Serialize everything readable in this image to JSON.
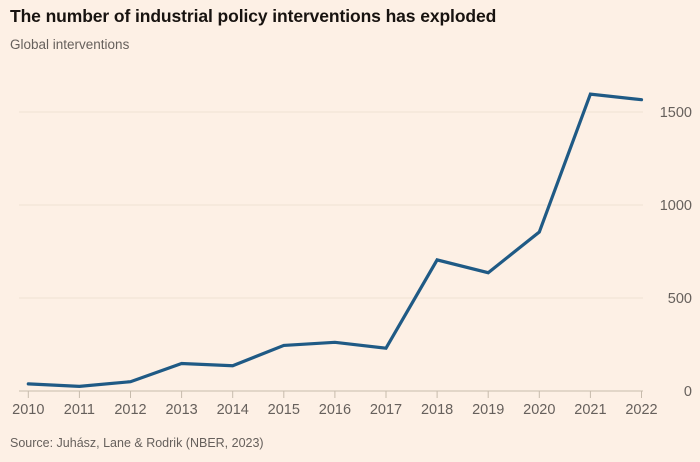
{
  "header": {
    "title": "The number of industrial policy interventions has exploded",
    "subtitle": "Global interventions"
  },
  "footer": {
    "source": "Source: Juhász, Lane & Rodrik (NBER, 2023)"
  },
  "chart_data": {
    "type": "line",
    "title": "The number of industrial policy interventions has exploded",
    "subtitle": "Global interventions",
    "series_name": "Global interventions",
    "x": [
      2010,
      2011,
      2012,
      2013,
      2014,
      2015,
      2016,
      2017,
      2018,
      2019,
      2020,
      2021,
      2022
    ],
    "values": [
      38,
      25,
      50,
      148,
      136,
      245,
      262,
      230,
      705,
      636,
      855,
      1596,
      1566
    ],
    "xlabel": "",
    "ylabel": "",
    "ylim": [
      0,
      1650
    ],
    "yticks": [
      0,
      500,
      1000,
      1500
    ],
    "y_axis_side": "right",
    "grid": true,
    "legend": "none",
    "colors": {
      "line": "#1f5a85",
      "background": "#fdf0e5",
      "gridline": "#f0e2d2",
      "axis": "#c7bbac",
      "tick_label": "#66605c",
      "title_text": "#181310"
    }
  }
}
